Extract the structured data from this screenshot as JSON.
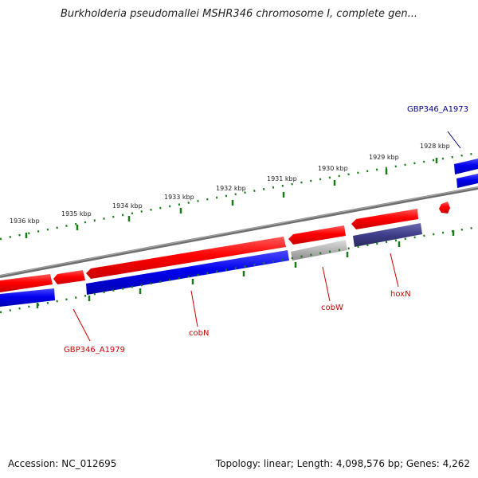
{
  "header": {
    "title": "Burkholderia pseudomallei MSHR346 chromosome I, complete gen..."
  },
  "footer": {
    "accession": "Accession: NC_012695",
    "summary": "Topology: linear; Length: 4,098,576 bp; Genes: 4,262"
  },
  "scale": {
    "unit_labels": [
      "1936 kbp",
      "1935 kbp",
      "1934 kbp",
      "1933 kbp",
      "1932 kbp",
      "1931 kbp",
      "1930 kbp",
      "1929 kbp",
      "1928 kbp"
    ]
  },
  "genes": [
    {
      "label": "GBP346_A1973",
      "color": "#00008b"
    },
    {
      "label": "GBP346_A1979",
      "color": "#cc0000"
    },
    {
      "label": "cobN",
      "color": "#cc0000"
    },
    {
      "label": "cobW",
      "color": "#cc0000"
    },
    {
      "label": "hoxN",
      "color": "#cc0000"
    }
  ],
  "colors": {
    "forward_feature": "#ff0000",
    "reverse_feature": "#0000ee",
    "pseudo_feature": "#b4b4b4",
    "purple_feature": "#3d3d88",
    "backbone": "#808080",
    "ticks": "#1a7a1a"
  }
}
